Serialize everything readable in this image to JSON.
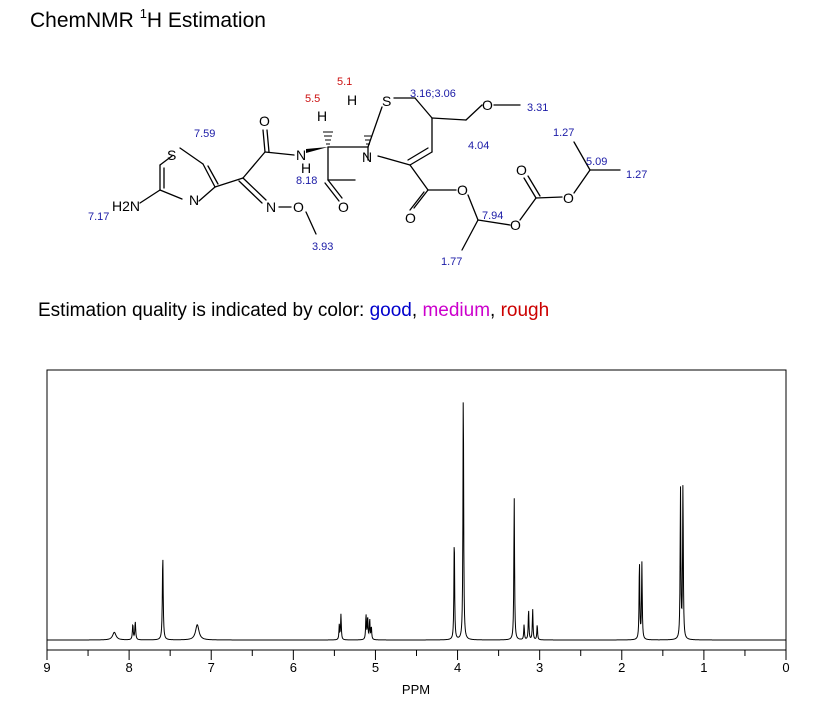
{
  "header": {
    "title_prefix": "ChemNMR ",
    "title_sup": "1",
    "title_suffix": "H Estimation"
  },
  "quality": {
    "text": "Estimation quality is indicated by color: ",
    "good": "good",
    "sep1": ", ",
    "medium": "medium",
    "sep2": ", ",
    "rough": "rough",
    "colors": {
      "good": "#0000cc",
      "medium": "#cc00cc",
      "rough": "#cc0000"
    }
  },
  "molecule": {
    "atoms": {
      "S1": "S",
      "N1": "N",
      "H2N": "H2N",
      "O1": "O",
      "NH_N": "N",
      "NH_H": "H",
      "N_oxime": "N",
      "O_oxime": "O",
      "O_lactam": "O",
      "N_ring": "N",
      "H1": "H",
      "H2": "H",
      "S2": "S",
      "O_ether": "O",
      "O_ester1": "O",
      "O_ester2": "O",
      "O_ester3": "O",
      "O_carb": "O",
      "O_carb2": "O"
    },
    "shifts": {
      "thiazole_h": "7.59",
      "nh2": "7.17",
      "nh": "8.18",
      "och3": "3.93",
      "h6": "5.5",
      "h7": "5.1",
      "sch2": "3.16;3.06",
      "och3_ether": "3.31",
      "ch2o": "4.04",
      "ch_ester": "7.94",
      "ch3_ester": "1.77",
      "ch3_iso1": "1.27",
      "ch_iso": "5.09",
      "ch3_iso2": "1.27"
    },
    "shift_quality": {
      "thiazole_h": "good",
      "nh2": "good",
      "nh": "good",
      "och3": "good",
      "h6": "rough",
      "h7": "rough",
      "sch2": "good",
      "och3_ether": "good",
      "ch2o": "good",
      "ch_ester": "good",
      "ch3_ester": "good",
      "ch3_iso1": "good",
      "ch_iso": "good",
      "ch3_iso2": "good"
    }
  },
  "chart_data": {
    "type": "line",
    "xlabel": "PPM",
    "xlim": [
      9,
      0
    ],
    "x_ticks": [
      9,
      8,
      7,
      6,
      5,
      4,
      3,
      2,
      1,
      0
    ],
    "x_tick_labels": [
      "9",
      "8",
      "7",
      "6",
      "5",
      "4",
      "3",
      "2",
      "1",
      "0"
    ],
    "ylim": [
      0,
      1.0
    ],
    "grid": false,
    "peaks": [
      {
        "ppm": 8.18,
        "height": 0.03,
        "width": 0.025
      },
      {
        "ppm": 7.955,
        "height": 0.06,
        "width": 0.006
      },
      {
        "ppm": 7.925,
        "height": 0.07,
        "width": 0.006
      },
      {
        "ppm": 7.59,
        "height": 0.33,
        "width": 0.006
      },
      {
        "ppm": 7.17,
        "height": 0.06,
        "width": 0.025
      },
      {
        "ppm": 5.44,
        "height": 0.06,
        "width": 0.005
      },
      {
        "ppm": 5.42,
        "height": 0.1,
        "width": 0.005
      },
      {
        "ppm": 5.115,
        "height": 0.1,
        "width": 0.005
      },
      {
        "ppm": 5.095,
        "height": 0.09,
        "width": 0.005
      },
      {
        "ppm": 5.07,
        "height": 0.08,
        "width": 0.005
      },
      {
        "ppm": 5.05,
        "height": 0.05,
        "width": 0.005
      },
      {
        "ppm": 4.04,
        "height": 0.41,
        "width": 0.005
      },
      {
        "ppm": 3.93,
        "height": 1.0,
        "width": 0.005
      },
      {
        "ppm": 3.31,
        "height": 0.56,
        "width": 0.005
      },
      {
        "ppm": 3.19,
        "height": 0.06,
        "width": 0.005
      },
      {
        "ppm": 3.135,
        "height": 0.12,
        "width": 0.005
      },
      {
        "ppm": 3.085,
        "height": 0.12,
        "width": 0.005
      },
      {
        "ppm": 3.03,
        "height": 0.06,
        "width": 0.005
      },
      {
        "ppm": 1.785,
        "height": 0.31,
        "width": 0.005
      },
      {
        "ppm": 1.755,
        "height": 0.3,
        "width": 0.005
      },
      {
        "ppm": 1.285,
        "height": 0.59,
        "width": 0.005
      },
      {
        "ppm": 1.255,
        "height": 0.61,
        "width": 0.005
      }
    ]
  }
}
